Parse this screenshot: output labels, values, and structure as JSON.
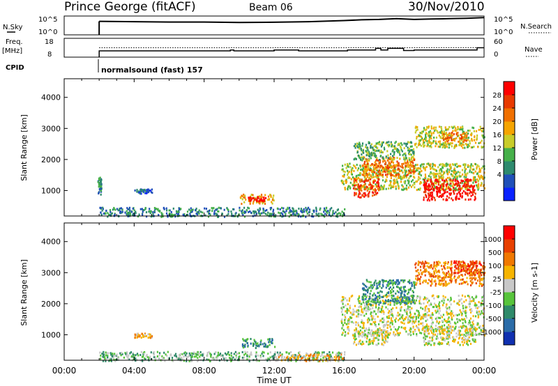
{
  "header": {
    "station": "Prince George (fitACF)",
    "beam": "Beam 06",
    "date": "30/Nov/2010"
  },
  "chart_data": [
    {
      "type": "line",
      "panel": "noise",
      "left_label": "N.Sky",
      "left_ticks": [
        "10^5",
        "10^0"
      ],
      "right_label": "N.Search",
      "right_ticks": [
        "10^5",
        "10^0"
      ],
      "x_hours": [
        2,
        4,
        6,
        8,
        10,
        12,
        14,
        16,
        17,
        18,
        19,
        20,
        21,
        22,
        23,
        24
      ],
      "nsky_fraction": [
        0.72,
        0.7,
        0.68,
        0.68,
        0.66,
        0.67,
        0.7,
        0.76,
        0.8,
        0.82,
        0.86,
        0.82,
        0.84,
        0.86,
        0.88,
        0.92
      ]
    },
    {
      "type": "line",
      "panel": "frequency-nave",
      "left_label": "Freq.",
      "left_unit": "[MHz]",
      "left_ticks": [
        "18",
        "8"
      ],
      "ylim_left": [
        6,
        18
      ],
      "right_label": "Nave",
      "right_ticks": [
        "60",
        "0"
      ],
      "ylim_right": [
        0,
        60
      ],
      "freq_steps": [
        [
          2,
          10
        ],
        [
          9.5,
          10.6
        ],
        [
          9.7,
          10
        ],
        [
          11.7,
          10
        ],
        [
          12,
          10.6
        ],
        [
          13.4,
          10
        ],
        [
          16.2,
          10.6
        ],
        [
          17.8,
          11.6
        ],
        [
          18.1,
          10.6
        ],
        [
          18.5,
          11.6
        ],
        [
          19.4,
          10.2
        ],
        [
          20,
          10.6
        ],
        [
          23.6,
          12
        ],
        [
          24,
          12
        ]
      ],
      "nave_level": 30,
      "cpid_label": "CPID",
      "cpid_text": "normalsound (fast) 157"
    },
    {
      "type": "heatmap",
      "panel": "power",
      "ylabel": "Slant Range [km]",
      "yticks": [
        1000,
        2000,
        3000,
        4000
      ],
      "ylim": [
        180,
        4600
      ],
      "xlim": [
        0,
        24
      ],
      "colorbar": {
        "label": "Power [dB]",
        "ticks": [
          "28",
          "24",
          "20",
          "16",
          "12",
          "8",
          "4"
        ],
        "colors": [
          "#0a22ff",
          "#2050b8",
          "#2e8a6e",
          "#46b04a",
          "#c8cc2a",
          "#f5a400",
          "#f07000",
          "#e83a00",
          "#ff0000"
        ]
      },
      "patches": [
        {
          "t0": 1.9,
          "t1": 2.1,
          "r0": 900,
          "r1": 1500,
          "level": 2
        },
        {
          "t0": 4.0,
          "t1": 5.0,
          "r0": 930,
          "r1": 1070,
          "level": 1
        },
        {
          "t0": 2.0,
          "t1": 16.0,
          "r0": 180,
          "r1": 480,
          "level": 2
        },
        {
          "t0": 10.0,
          "t1": 12.0,
          "r0": 600,
          "r1": 900,
          "level": 5
        },
        {
          "t0": 10.5,
          "t1": 11.5,
          "r0": 680,
          "r1": 820,
          "level": 8
        },
        {
          "t0": 15.8,
          "t1": 24.0,
          "r0": 1050,
          "r1": 1900,
          "level": 4
        },
        {
          "t0": 16.5,
          "t1": 18.0,
          "r0": 800,
          "r1": 1400,
          "level": 7
        },
        {
          "t0": 20.5,
          "t1": 23.5,
          "r0": 700,
          "r1": 1400,
          "level": 8
        },
        {
          "t0": 17.0,
          "t1": 20.0,
          "r0": 1500,
          "r1": 2100,
          "level": 6
        },
        {
          "t0": 16.5,
          "t1": 20.0,
          "r0": 2000,
          "r1": 2600,
          "level": 3
        },
        {
          "t0": 20.0,
          "t1": 24.0,
          "r0": 2400,
          "r1": 3100,
          "level": 4
        },
        {
          "t0": 21.5,
          "t1": 23.0,
          "r0": 2600,
          "r1": 2900,
          "level": 6
        }
      ]
    },
    {
      "type": "heatmap",
      "panel": "velocity",
      "ylabel": "Slant Range [km]",
      "yticks": [
        1000,
        2000,
        3000,
        4000
      ],
      "ylim": [
        180,
        4600
      ],
      "xlim": [
        0,
        24
      ],
      "xticks": [
        "00:00",
        "04:00",
        "08:00",
        "12:00",
        "16:00",
        "20:00",
        "00:00"
      ],
      "xlabel": "Time UT",
      "colorbar": {
        "label": "Velocity [m s-1]",
        "ticks": [
          "1000",
          "500",
          "100",
          "25",
          "-25",
          "-100",
          "-500",
          "-1000"
        ],
        "colors": [
          "#1030b0",
          "#2b6ca8",
          "#2f8a6a",
          "#58c43c",
          "#c8c8c8",
          "#f6b400",
          "#f07800",
          "#e84000",
          "#ff0000"
        ]
      },
      "patches": [
        {
          "t0": 2.0,
          "t1": 16.0,
          "r0": 180,
          "r1": 480,
          "level": 3
        },
        {
          "t0": 12.0,
          "t1": 16.0,
          "r0": 180,
          "r1": 400,
          "level": 5
        },
        {
          "t0": 4.0,
          "t1": 5.0,
          "r0": 930,
          "r1": 1070,
          "level": 5
        },
        {
          "t0": 10.0,
          "t1": 12.0,
          "r0": 600,
          "r1": 900,
          "level": 2
        },
        {
          "t0": 15.8,
          "t1": 24.0,
          "r0": 1000,
          "r1": 2300,
          "level": 4
        },
        {
          "t0": 16.5,
          "t1": 18.5,
          "r0": 700,
          "r1": 1200,
          "level": 4
        },
        {
          "t0": 20.5,
          "t1": 23.5,
          "r0": 700,
          "r1": 1300,
          "level": 4
        },
        {
          "t0": 17.0,
          "t1": 20.0,
          "r0": 2000,
          "r1": 2800,
          "level": 2
        },
        {
          "t0": 20.0,
          "t1": 24.0,
          "r0": 2600,
          "r1": 3400,
          "level": 6
        },
        {
          "t0": 22.0,
          "t1": 24.0,
          "r0": 3000,
          "r1": 3400,
          "level": 7
        }
      ]
    }
  ]
}
